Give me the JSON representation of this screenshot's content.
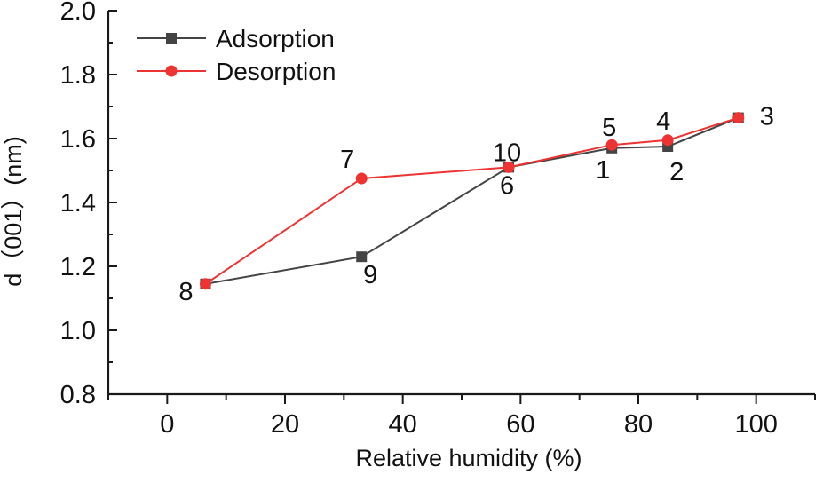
{
  "chart_data": {
    "type": "line",
    "xlabel": "Relative humidity (%)",
    "ylabel": "d（001）(nm)",
    "xlim": [
      -10,
      110
    ],
    "ylim": [
      0.8,
      2.0
    ],
    "x_ticks": [
      "0",
      "20",
      "40",
      "60",
      "80",
      "100"
    ],
    "y_ticks": [
      "0.8",
      "1.0",
      "1.2",
      "1.4",
      "1.6",
      "1.8",
      "2.0"
    ],
    "grid": false,
    "legend": "top-left",
    "series": [
      {
        "name": "Adsorption",
        "color": "#444444",
        "marker": "square",
        "x": [
          6.5,
          33,
          58,
          75.5,
          85,
          97
        ],
        "y": [
          1.145,
          1.23,
          1.51,
          1.57,
          1.575,
          1.665
        ]
      },
      {
        "name": "Desorption",
        "color": "#ee3333",
        "marker": "circle",
        "x": [
          6.5,
          33,
          58,
          75.5,
          85,
          97
        ],
        "y": [
          1.145,
          1.475,
          1.51,
          1.58,
          1.595,
          1.665
        ]
      }
    ],
    "annotations": [
      {
        "text": "1",
        "x": 75.5,
        "y": 1.57
      },
      {
        "text": "2",
        "x": 85,
        "y": 1.575
      },
      {
        "text": "3",
        "x": 97,
        "y": 1.665
      },
      {
        "text": "4",
        "x": 85,
        "y": 1.595
      },
      {
        "text": "5",
        "x": 75.5,
        "y": 1.58
      },
      {
        "text": "6",
        "x": 58,
        "y": 1.51
      },
      {
        "text": "7",
        "x": 33,
        "y": 1.475
      },
      {
        "text": "8",
        "x": 6.5,
        "y": 1.145
      },
      {
        "text": "9",
        "x": 33,
        "y": 1.23
      },
      {
        "text": "10",
        "x": 58,
        "y": 1.51
      }
    ]
  }
}
